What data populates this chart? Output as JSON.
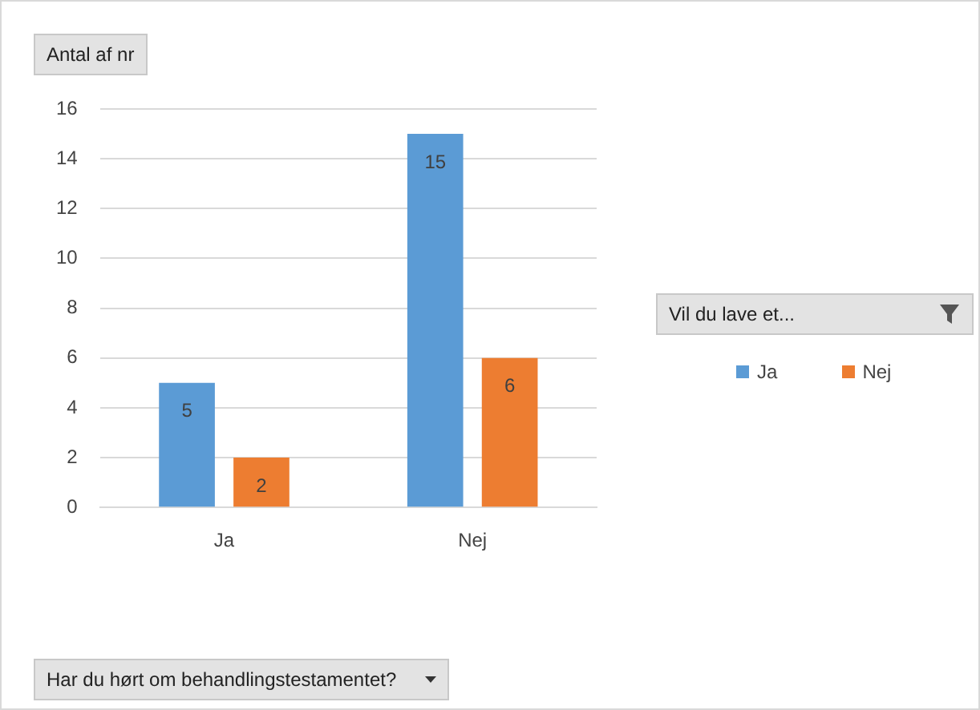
{
  "chart_data": {
    "type": "bar",
    "title": "Antal af nr",
    "annotations": [
      "Har du hørt om behandlingstestamentet?"
    ],
    "legend_title": "Vil du lave et...",
    "categories": [
      "Ja",
      "Nej"
    ],
    "series": [
      {
        "name": "Ja",
        "color": "#5b9bd5",
        "values": [
          5,
          15
        ]
      },
      {
        "name": "Nej",
        "color": "#ed7d31",
        "values": [
          2,
          6
        ]
      }
    ],
    "ylim": [
      0,
      16
    ],
    "yticks": [
      0,
      2,
      4,
      6,
      8,
      10,
      12,
      14,
      16
    ],
    "grid": "y",
    "legend": "right",
    "data_labels": true
  }
}
